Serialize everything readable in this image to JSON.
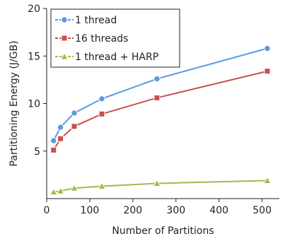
{
  "chart_data": {
    "type": "line",
    "title": "",
    "xlabel": "Number of Partitions",
    "ylabel": "Partitioning Energy (J/GB)",
    "xlim": [
      0,
      540
    ],
    "ylim": [
      0,
      20
    ],
    "xticks": [
      0,
      100,
      200,
      300,
      400,
      500
    ],
    "yticks": [
      5,
      10,
      15,
      20
    ],
    "grid": false,
    "legend_position": "top-left",
    "x": [
      16,
      32,
      64,
      128,
      256,
      512
    ],
    "series": [
      {
        "name": "1 thread",
        "color": "#5b9be0",
        "marker": "circle",
        "style": "dashed",
        "values": [
          6.1,
          7.5,
          9.0,
          10.5,
          12.6,
          15.8
        ]
      },
      {
        "name": "16 threads",
        "color": "#c9504c",
        "marker": "square",
        "style": "dashed",
        "values": [
          5.1,
          6.3,
          7.6,
          8.9,
          10.6,
          13.4
        ]
      },
      {
        "name": "1 thread + HARP",
        "color": "#9bbd4e",
        "marker": "triangle",
        "style": "dashed",
        "values": [
          0.7,
          0.8,
          1.1,
          1.3,
          1.6,
          1.9
        ]
      }
    ]
  }
}
